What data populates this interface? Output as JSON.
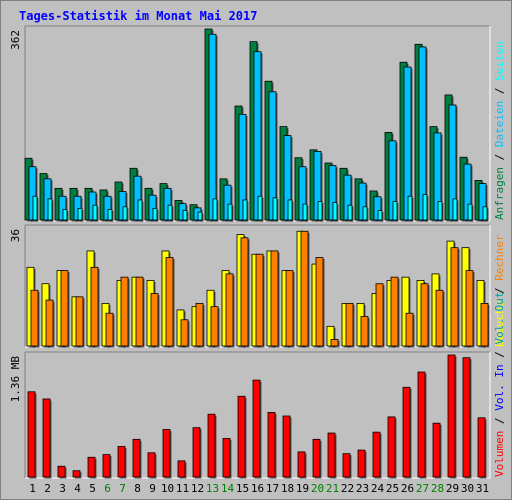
{
  "title": "Tages-Statistik im Monat Mai 2017",
  "colors": {
    "anfragen": "#008040",
    "dateien": "#00c0ff",
    "seiten": "#00ffff",
    "besuche": "#ffff00",
    "rechner": "#ff8000",
    "volumen": "#ff0000",
    "vol_in": "#0000ff",
    "vol_out": "#00a0a0",
    "weekend_label": "#008000",
    "weekday_label": "#000000",
    "title": "#0000ff"
  },
  "chart_data": [
    {
      "type": "bar",
      "name": "hits",
      "ymax_label": "362",
      "ylim": [
        0,
        362
      ],
      "categories": [
        "1",
        "2",
        "3",
        "4",
        "5",
        "6",
        "7",
        "8",
        "9",
        "10",
        "11",
        "12",
        "13",
        "14",
        "15",
        "16",
        "17",
        "18",
        "19",
        "20",
        "21",
        "22",
        "23",
        "24",
        "25",
        "26",
        "27",
        "28",
        "29",
        "30",
        "31"
      ],
      "weekend": [
        6,
        7,
        13,
        14,
        20,
        21,
        27,
        28
      ],
      "right_labels": [
        {
          "text": "Anfragen",
          "color_key": "anfragen"
        },
        {
          "text": "Dateien",
          "color_key": "dateien"
        },
        {
          "text": "Seiten",
          "color_key": "seiten"
        }
      ],
      "series": [
        {
          "name": "Anfragen",
          "values": [
            117,
            88,
            60,
            60,
            60,
            57,
            72,
            98,
            60,
            69,
            37,
            29,
            362,
            78,
            216,
            338,
            263,
            177,
            118,
            133,
            108,
            98,
            78,
            55,
            166,
            299,
            333,
            177,
            237,
            119,
            75
          ]
        },
        {
          "name": "Dateien",
          "values": [
            101,
            78,
            45,
            45,
            53,
            45,
            54,
            83,
            47,
            60,
            31,
            23,
            352,
            66,
            200,
            319,
            243,
            160,
            101,
            130,
            103,
            85,
            70,
            44,
            150,
            290,
            328,
            165,
            218,
            106,
            69
          ]
        },
        {
          "name": "Seiten",
          "values": [
            45,
            40,
            20,
            22,
            28,
            20,
            25,
            38,
            22,
            28,
            18,
            15,
            40,
            30,
            38,
            45,
            42,
            38,
            30,
            35,
            33,
            28,
            25,
            18,
            35,
            45,
            48,
            35,
            40,
            30,
            25
          ]
        }
      ]
    },
    {
      "type": "bar",
      "name": "visits",
      "ymax_label": "36",
      "ylim": [
        0,
        36
      ],
      "right_labels": [
        {
          "text": "Besuche",
          "color_key": "besuche"
        },
        {
          "text": "Rechner",
          "color_key": "rechner"
        }
      ],
      "series": [
        {
          "name": "Besuche",
          "values": [
            24,
            19,
            23,
            15,
            29,
            13,
            20,
            21,
            20,
            29,
            11,
            12,
            17,
            23,
            34,
            28,
            29,
            23,
            35,
            25,
            6,
            13,
            13,
            16,
            20,
            21,
            20,
            22,
            32,
            30,
            20
          ]
        },
        {
          "name": "Rechner",
          "values": [
            17,
            14,
            23,
            15,
            24,
            10,
            21,
            21,
            16,
            27,
            8,
            13,
            12,
            22,
            33,
            28,
            29,
            23,
            35,
            27,
            2,
            13,
            9,
            19,
            21,
            10,
            19,
            17,
            30,
            23,
            13
          ]
        }
      ]
    },
    {
      "type": "bar",
      "name": "volume",
      "ymax_label": "1.36 MB",
      "ylim": [
        0,
        1.36
      ],
      "right_labels": [
        {
          "text": "Volumen",
          "color_key": "volumen"
        },
        {
          "text": "Vol. In",
          "color_key": "vol_in"
        },
        {
          "text": "Vol. Out",
          "color_key": "vol_out"
        }
      ],
      "series": [
        {
          "name": "Volumen",
          "values": [
            0.95,
            0.87,
            0.12,
            0.07,
            0.22,
            0.25,
            0.34,
            0.42,
            0.27,
            0.53,
            0.18,
            0.55,
            0.7,
            0.43,
            0.9,
            1.08,
            0.72,
            0.68,
            0.28,
            0.42,
            0.49,
            0.26,
            0.3,
            0.5,
            0.67,
            1.0,
            1.17,
            0.6,
            1.36,
            1.33,
            0.66
          ]
        }
      ]
    }
  ]
}
